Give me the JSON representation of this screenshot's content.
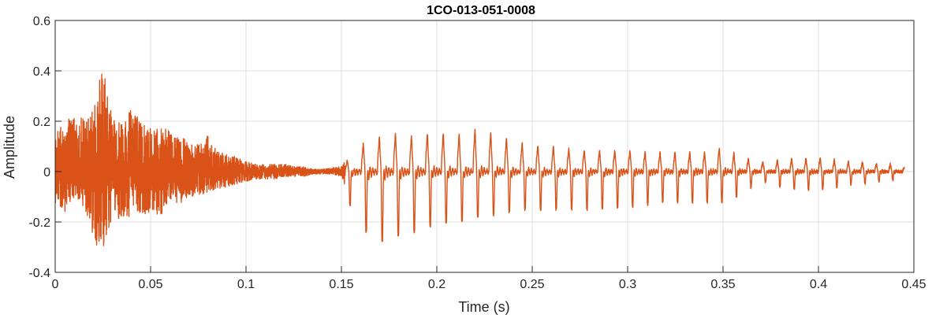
{
  "chart_data": {
    "type": "line",
    "title": "1CO-013-051-0008",
    "xlabel": "Time (s)",
    "ylabel": "Amplitude",
    "xlim": [
      0,
      0.45
    ],
    "ylim": [
      -0.4,
      0.6
    ],
    "xticks": [
      0,
      0.05,
      0.1,
      0.15,
      0.2,
      0.25,
      0.3,
      0.35,
      0.4,
      0.45
    ],
    "xtick_labels": [
      "0",
      "0.05",
      "0.1",
      "0.15",
      "0.2",
      "0.25",
      "0.3",
      "0.35",
      "0.4",
      "0.45"
    ],
    "yticks": [
      -0.4,
      -0.2,
      0,
      0.2,
      0.4,
      0.6
    ],
    "ytick_labels": [
      "-0.4",
      "-0.2",
      "0",
      "0.2",
      "0.4",
      "0.6"
    ],
    "grid": true,
    "series": [
      {
        "color": "#D95319",
        "envelope": {
          "t": [
            0,
            0.005,
            0.01,
            0.015,
            0.02,
            0.025,
            0.03,
            0.035,
            0.04,
            0.045,
            0.05,
            0.055,
            0.06,
            0.065,
            0.07,
            0.075,
            0.08,
            0.085,
            0.09,
            0.095,
            0.1,
            0.105,
            0.11,
            0.115,
            0.12,
            0.125,
            0.13,
            0.135,
            0.14,
            0.145,
            0.15,
            0.155,
            0.16,
            0.165,
            0.17,
            0.175,
            0.18,
            0.185,
            0.19,
            0.195,
            0.2,
            0.205,
            0.21,
            0.215,
            0.22,
            0.225,
            0.23,
            0.235,
            0.24,
            0.245,
            0.25,
            0.26,
            0.27,
            0.28,
            0.29,
            0.3,
            0.31,
            0.32,
            0.33,
            0.34,
            0.35,
            0.355,
            0.36,
            0.365,
            0.37,
            0.375,
            0.38,
            0.39,
            0.4,
            0.41,
            0.42,
            0.43,
            0.44,
            0.445
          ],
          "max": [
            0.16,
            0.2,
            0.25,
            0.22,
            0.24,
            0.44,
            0.21,
            0.19,
            0.25,
            0.2,
            0.17,
            0.17,
            0.17,
            0.14,
            0.12,
            0.12,
            0.15,
            0.08,
            0.07,
            0.06,
            0.04,
            0.03,
            0.03,
            0.03,
            0.03,
            0.02,
            0.02,
            0.01,
            0.01,
            0.015,
            0.02,
            0.08,
            0.14,
            0.16,
            0.18,
            0.19,
            0.2,
            0.18,
            0.19,
            0.2,
            0.2,
            0.2,
            0.19,
            0.2,
            0.22,
            0.21,
            0.2,
            0.18,
            0.16,
            0.15,
            0.14,
            0.13,
            0.12,
            0.11,
            0.11,
            0.11,
            0.1,
            0.1,
            0.1,
            0.1,
            0.13,
            0.1,
            0.08,
            0.06,
            0.05,
            0.05,
            0.06,
            0.07,
            0.07,
            0.06,
            0.05,
            0.04,
            0.04,
            0.02
          ],
          "min": [
            -0.15,
            -0.16,
            -0.1,
            -0.14,
            -0.29,
            -0.31,
            -0.2,
            -0.19,
            -0.18,
            -0.16,
            -0.18,
            -0.18,
            -0.11,
            -0.13,
            -0.1,
            -0.1,
            -0.08,
            -0.07,
            -0.06,
            -0.05,
            -0.04,
            -0.03,
            -0.03,
            -0.03,
            -0.02,
            -0.02,
            -0.02,
            -0.01,
            -0.01,
            -0.01,
            -0.02,
            -0.14,
            -0.22,
            -0.25,
            -0.27,
            -0.29,
            -0.25,
            -0.25,
            -0.23,
            -0.22,
            -0.21,
            -0.2,
            -0.2,
            -0.19,
            -0.18,
            -0.18,
            -0.17,
            -0.16,
            -0.16,
            -0.15,
            -0.15,
            -0.15,
            -0.15,
            -0.15,
            -0.14,
            -0.14,
            -0.13,
            -0.12,
            -0.12,
            -0.12,
            -0.12,
            -0.11,
            -0.08,
            -0.06,
            -0.04,
            -0.04,
            -0.06,
            -0.07,
            -0.07,
            -0.06,
            -0.05,
            -0.04,
            -0.03,
            -0.02
          ]
        },
        "voiced_onset_s": 0.152,
        "f0_hz": [
          {
            "t": 0.152,
            "hz": 118
          },
          {
            "t": 0.25,
            "hz": 122
          },
          {
            "t": 0.37,
            "hz": 132
          },
          {
            "t": 0.445,
            "hz": 138
          }
        ]
      }
    ]
  }
}
